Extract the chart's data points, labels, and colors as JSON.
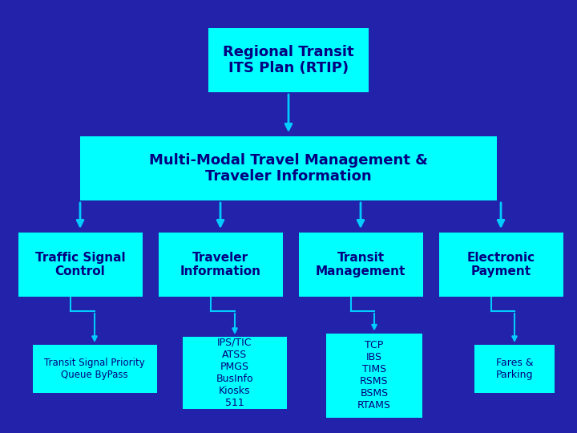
{
  "background_color": "#2222aa",
  "box_color": "#00ffff",
  "text_color": "#000080",
  "arrow_color": "#00ccff",
  "title": "Regional Transit\nITS Plan (RTIP)",
  "level2": "Multi-Modal Travel Management &\nTraveler Information",
  "level3": [
    "Traffic Signal\nControl",
    "Traveler\nInformation",
    "Transit\nManagement",
    "Electronic\nPayment"
  ],
  "level4": [
    "Transit Signal Priority\nQueue ByPass",
    "IPS/TIC\nATSS\nPMGS\nBusInfo\nKiosks\n511",
    "TCP\nIBS\nTIMS\nRSMS\nBSMS\nRTAMS",
    "Fares &\nParking"
  ],
  "fig_width": 7.2,
  "fig_height": 5.4,
  "dpi": 100
}
